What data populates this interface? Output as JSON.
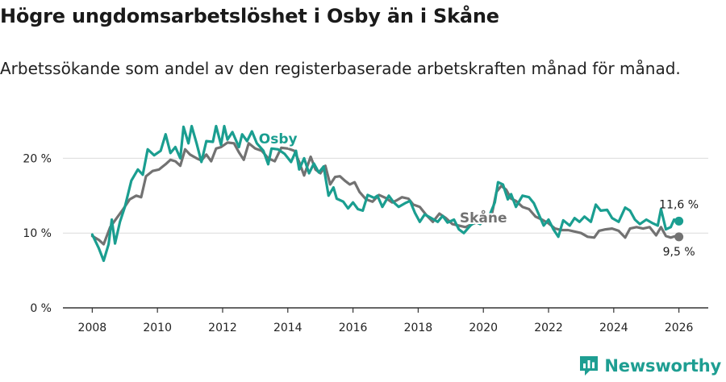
{
  "header": {
    "title": "Högre ungdomsarbetslöshet i Osby än i Skåne",
    "subtitle": "Arbetssökande som andel av den registerbaserade arbetskraften månad för månad."
  },
  "brand": {
    "name": "Newsworthy",
    "icon": "newsworthy-logo-icon",
    "color": "#1e9e92"
  },
  "chart_data": {
    "type": "line",
    "title": "Högre ungdomsarbetslöshet i Osby än i Skåne",
    "xlabel": "",
    "ylabel": "",
    "xlim": [
      2007.1,
      2026.9
    ],
    "ylim": [
      0,
      25
    ],
    "x_ticks": [
      2008,
      2010,
      2012,
      2014,
      2016,
      2018,
      2020,
      2022,
      2024,
      2026
    ],
    "x_tick_labels": [
      "2008",
      "2010",
      "2012",
      "2014",
      "2016",
      "2018",
      "2020",
      "2022",
      "2024",
      "2026"
    ],
    "y_ticks": [
      0,
      10,
      20
    ],
    "y_tick_labels": [
      "0 %",
      "10 %",
      "20 %"
    ],
    "grid": true,
    "series": [
      {
        "name": "Osby",
        "color": "#1a9e90",
        "end_label": "11,6 %",
        "end_value": 11.6,
        "points": [
          [
            2008.0,
            9.8
          ],
          [
            2008.2,
            8.0
          ],
          [
            2008.35,
            6.3
          ],
          [
            2008.5,
            8.5
          ],
          [
            2008.6,
            11.8
          ],
          [
            2008.7,
            8.6
          ],
          [
            2008.85,
            11.5
          ],
          [
            2009.0,
            13.5
          ],
          [
            2009.2,
            17.0
          ],
          [
            2009.4,
            18.5
          ],
          [
            2009.55,
            17.8
          ],
          [
            2009.7,
            21.2
          ],
          [
            2009.9,
            20.4
          ],
          [
            2010.1,
            21.0
          ],
          [
            2010.25,
            23.2
          ],
          [
            2010.4,
            20.7
          ],
          [
            2010.55,
            21.5
          ],
          [
            2010.7,
            20.0
          ],
          [
            2010.8,
            24.2
          ],
          [
            2010.95,
            22.0
          ],
          [
            2011.05,
            24.3
          ],
          [
            2011.2,
            22.0
          ],
          [
            2011.35,
            19.5
          ],
          [
            2011.5,
            22.3
          ],
          [
            2011.7,
            22.2
          ],
          [
            2011.8,
            24.3
          ],
          [
            2011.95,
            21.8
          ],
          [
            2012.05,
            24.3
          ],
          [
            2012.15,
            22.5
          ],
          [
            2012.3,
            23.5
          ],
          [
            2012.5,
            21.5
          ],
          [
            2012.6,
            23.2
          ],
          [
            2012.75,
            22.3
          ],
          [
            2012.9,
            23.6
          ],
          [
            2013.05,
            22.0
          ],
          [
            2013.25,
            21.0
          ],
          [
            2013.4,
            19.2
          ],
          [
            2013.5,
            21.3
          ],
          [
            2013.7,
            21.2
          ],
          [
            2013.9,
            20.6
          ],
          [
            2014.1,
            19.5
          ],
          [
            2014.25,
            21.0
          ],
          [
            2014.35,
            18.5
          ],
          [
            2014.5,
            20.0
          ],
          [
            2014.65,
            18.0
          ],
          [
            2014.8,
            19.3
          ],
          [
            2014.95,
            18.1
          ],
          [
            2015.1,
            18.9
          ],
          [
            2015.25,
            15.0
          ],
          [
            2015.4,
            16.1
          ],
          [
            2015.5,
            14.6
          ],
          [
            2015.7,
            14.2
          ],
          [
            2015.85,
            13.3
          ],
          [
            2016.0,
            14.1
          ],
          [
            2016.15,
            13.2
          ],
          [
            2016.3,
            13.0
          ],
          [
            2016.45,
            15.1
          ],
          [
            2016.65,
            14.7
          ],
          [
            2016.75,
            15.0
          ],
          [
            2016.9,
            13.5
          ],
          [
            2017.1,
            15.0
          ],
          [
            2017.25,
            14.1
          ],
          [
            2017.4,
            13.5
          ],
          [
            2017.6,
            14.0
          ],
          [
            2017.75,
            14.3
          ],
          [
            2017.9,
            12.7
          ],
          [
            2018.05,
            11.5
          ],
          [
            2018.2,
            12.5
          ],
          [
            2018.4,
            12.0
          ],
          [
            2018.6,
            11.5
          ],
          [
            2018.75,
            12.3
          ],
          [
            2018.9,
            11.4
          ],
          [
            2019.1,
            11.8
          ],
          [
            2019.25,
            10.5
          ],
          [
            2019.4,
            10.0
          ],
          [
            2019.6,
            11.0
          ],
          [
            2019.75,
            11.5
          ],
          [
            2019.9,
            11.2
          ],
          [
            2020.05,
            12.0
          ],
          [
            2020.2,
            12.5
          ],
          [
            2020.35,
            14.1
          ],
          [
            2020.45,
            16.8
          ],
          [
            2020.6,
            16.5
          ],
          [
            2020.75,
            14.5
          ],
          [
            2020.85,
            15.2
          ],
          [
            2021.0,
            13.5
          ],
          [
            2021.2,
            15.0
          ],
          [
            2021.4,
            14.8
          ],
          [
            2021.55,
            14.0
          ],
          [
            2021.7,
            12.5
          ],
          [
            2021.85,
            11.0
          ],
          [
            2022.0,
            11.8
          ],
          [
            2022.15,
            10.5
          ],
          [
            2022.3,
            9.5
          ],
          [
            2022.45,
            11.7
          ],
          [
            2022.65,
            11.0
          ],
          [
            2022.8,
            12.0
          ],
          [
            2022.95,
            11.5
          ],
          [
            2023.1,
            12.2
          ],
          [
            2023.3,
            11.5
          ],
          [
            2023.45,
            13.8
          ],
          [
            2023.6,
            13.0
          ],
          [
            2023.8,
            13.1
          ],
          [
            2023.95,
            12.0
          ],
          [
            2024.15,
            11.5
          ],
          [
            2024.35,
            13.4
          ],
          [
            2024.5,
            13.0
          ],
          [
            2024.65,
            11.8
          ],
          [
            2024.8,
            11.2
          ],
          [
            2025.0,
            11.8
          ],
          [
            2025.2,
            11.3
          ],
          [
            2025.35,
            11.0
          ],
          [
            2025.45,
            13.2
          ],
          [
            2025.6,
            10.5
          ],
          [
            2025.75,
            10.8
          ],
          [
            2025.85,
            11.8
          ],
          [
            2026.0,
            11.6
          ]
        ]
      },
      {
        "name": "Skåne",
        "color": "#727272",
        "end_label": "9,5 %",
        "end_value": 9.5,
        "points": [
          [
            2008.0,
            9.6
          ],
          [
            2008.2,
            9.1
          ],
          [
            2008.35,
            8.5
          ],
          [
            2008.55,
            10.8
          ],
          [
            2008.75,
            12.0
          ],
          [
            2008.95,
            13.2
          ],
          [
            2009.15,
            14.5
          ],
          [
            2009.35,
            15.0
          ],
          [
            2009.5,
            14.8
          ],
          [
            2009.65,
            17.6
          ],
          [
            2009.85,
            18.3
          ],
          [
            2010.05,
            18.5
          ],
          [
            2010.25,
            19.2
          ],
          [
            2010.4,
            19.8
          ],
          [
            2010.55,
            19.6
          ],
          [
            2010.7,
            19.0
          ],
          [
            2010.85,
            21.2
          ],
          [
            2011.0,
            20.5
          ],
          [
            2011.2,
            20.0
          ],
          [
            2011.35,
            19.7
          ],
          [
            2011.5,
            20.5
          ],
          [
            2011.65,
            19.6
          ],
          [
            2011.8,
            21.3
          ],
          [
            2011.95,
            21.5
          ],
          [
            2012.15,
            22.1
          ],
          [
            2012.35,
            22.0
          ],
          [
            2012.5,
            20.8
          ],
          [
            2012.65,
            19.8
          ],
          [
            2012.8,
            22.0
          ],
          [
            2013.0,
            21.3
          ],
          [
            2013.2,
            21.0
          ],
          [
            2013.4,
            20.0
          ],
          [
            2013.6,
            19.6
          ],
          [
            2013.8,
            21.4
          ],
          [
            2014.0,
            21.3
          ],
          [
            2014.2,
            21.0
          ],
          [
            2014.35,
            19.5
          ],
          [
            2014.5,
            17.7
          ],
          [
            2014.7,
            20.2
          ],
          [
            2014.85,
            18.5
          ],
          [
            2015.0,
            18.0
          ],
          [
            2015.15,
            19.0
          ],
          [
            2015.3,
            16.5
          ],
          [
            2015.45,
            17.5
          ],
          [
            2015.6,
            17.6
          ],
          [
            2015.75,
            17.0
          ],
          [
            2015.9,
            16.5
          ],
          [
            2016.05,
            16.8
          ],
          [
            2016.2,
            15.5
          ],
          [
            2016.4,
            14.5
          ],
          [
            2016.6,
            14.2
          ],
          [
            2016.8,
            15.1
          ],
          [
            2017.0,
            14.7
          ],
          [
            2017.2,
            14.1
          ],
          [
            2017.35,
            14.4
          ],
          [
            2017.5,
            14.8
          ],
          [
            2017.7,
            14.6
          ],
          [
            2017.85,
            13.8
          ],
          [
            2018.05,
            13.5
          ],
          [
            2018.25,
            12.4
          ],
          [
            2018.45,
            11.5
          ],
          [
            2018.65,
            12.6
          ],
          [
            2018.85,
            12.0
          ],
          [
            2019.05,
            11.2
          ],
          [
            2019.25,
            11.0
          ],
          [
            2019.45,
            10.8
          ],
          [
            2019.65,
            11.2
          ],
          [
            2019.85,
            11.5
          ],
          [
            2020.05,
            11.8
          ],
          [
            2020.25,
            12.3
          ],
          [
            2020.4,
            15.5
          ],
          [
            2020.55,
            16.3
          ],
          [
            2020.7,
            15.8
          ],
          [
            2020.85,
            14.6
          ],
          [
            2021.0,
            14.3
          ],
          [
            2021.2,
            13.5
          ],
          [
            2021.4,
            13.2
          ],
          [
            2021.6,
            12.2
          ],
          [
            2021.8,
            11.8
          ],
          [
            2022.0,
            11.3
          ],
          [
            2022.2,
            10.6
          ],
          [
            2022.4,
            10.4
          ],
          [
            2022.6,
            10.4
          ],
          [
            2022.8,
            10.2
          ],
          [
            2023.0,
            10.0
          ],
          [
            2023.2,
            9.5
          ],
          [
            2023.4,
            9.4
          ],
          [
            2023.55,
            10.3
          ],
          [
            2023.75,
            10.5
          ],
          [
            2023.95,
            10.6
          ],
          [
            2024.15,
            10.3
          ],
          [
            2024.35,
            9.4
          ],
          [
            2024.5,
            10.6
          ],
          [
            2024.7,
            10.8
          ],
          [
            2024.9,
            10.6
          ],
          [
            2025.1,
            10.8
          ],
          [
            2025.3,
            9.7
          ],
          [
            2025.45,
            10.8
          ],
          [
            2025.6,
            9.6
          ],
          [
            2025.75,
            9.4
          ],
          [
            2025.9,
            9.6
          ],
          [
            2026.0,
            9.5
          ]
        ]
      }
    ]
  }
}
